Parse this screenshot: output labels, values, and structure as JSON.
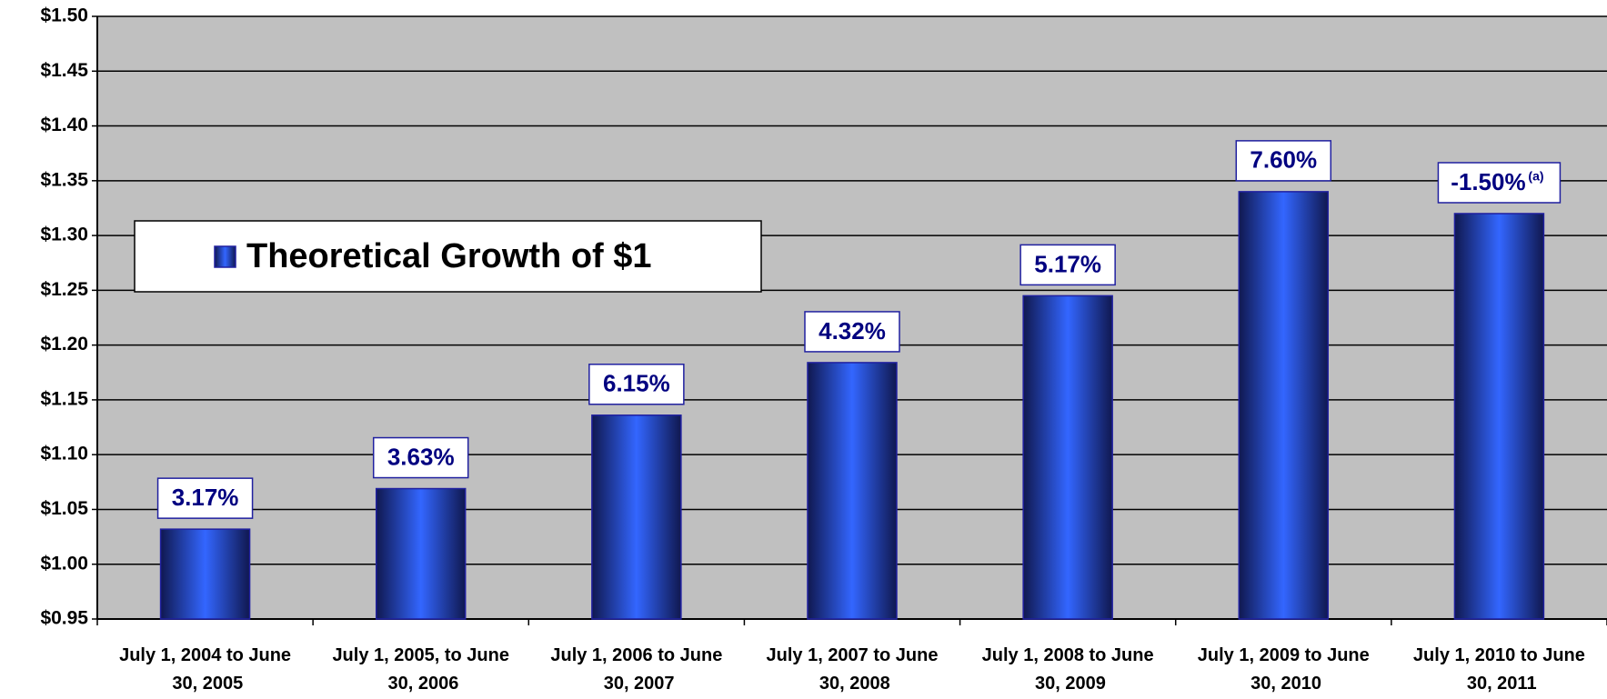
{
  "chart_data": {
    "type": "bar",
    "categories": [
      "July 1, 2004 to June 30, 2005",
      "July 1, 2005, to June 30, 2006",
      "July 1, 2006 to June 30, 2007",
      "July 1, 2007 to June 30, 2008",
      "July 1, 2008 to June 30, 2009",
      "July 1, 2009 to June 30, 2010",
      "July 1, 2010 to June 30, 2011"
    ],
    "series": [
      {
        "name": "Theoretical Growth of $1",
        "color": "#3366ff",
        "values": [
          1.032,
          1.069,
          1.136,
          1.184,
          1.245,
          1.34,
          1.32
        ]
      }
    ],
    "bar_labels": [
      "3.17%",
      "3.63%",
      "6.15%",
      "4.32%",
      "5.17%",
      "7.60%",
      "-1.50%"
    ],
    "bar_label_notes": [
      null,
      null,
      null,
      null,
      null,
      null,
      "(a)"
    ],
    "ylim": [
      0.95,
      1.5
    ],
    "yticks": [
      {
        "value": 0.95,
        "label": "$0.95"
      },
      {
        "value": 1.0,
        "label": "$1.00"
      },
      {
        "value": 1.05,
        "label": "$1.05"
      },
      {
        "value": 1.1,
        "label": "$1.10"
      },
      {
        "value": 1.15,
        "label": "$1.15"
      },
      {
        "value": 1.2,
        "label": "$1.20"
      },
      {
        "value": 1.25,
        "label": "$1.25"
      },
      {
        "value": 1.3,
        "label": "$1.30"
      },
      {
        "value": 1.35,
        "label": "$1.35"
      },
      {
        "value": 1.4,
        "label": "$1.40"
      },
      {
        "value": 1.45,
        "label": "$1.45"
      },
      {
        "value": 1.5,
        "label": "$1.50"
      }
    ],
    "grid": true,
    "legend": "upper left"
  }
}
